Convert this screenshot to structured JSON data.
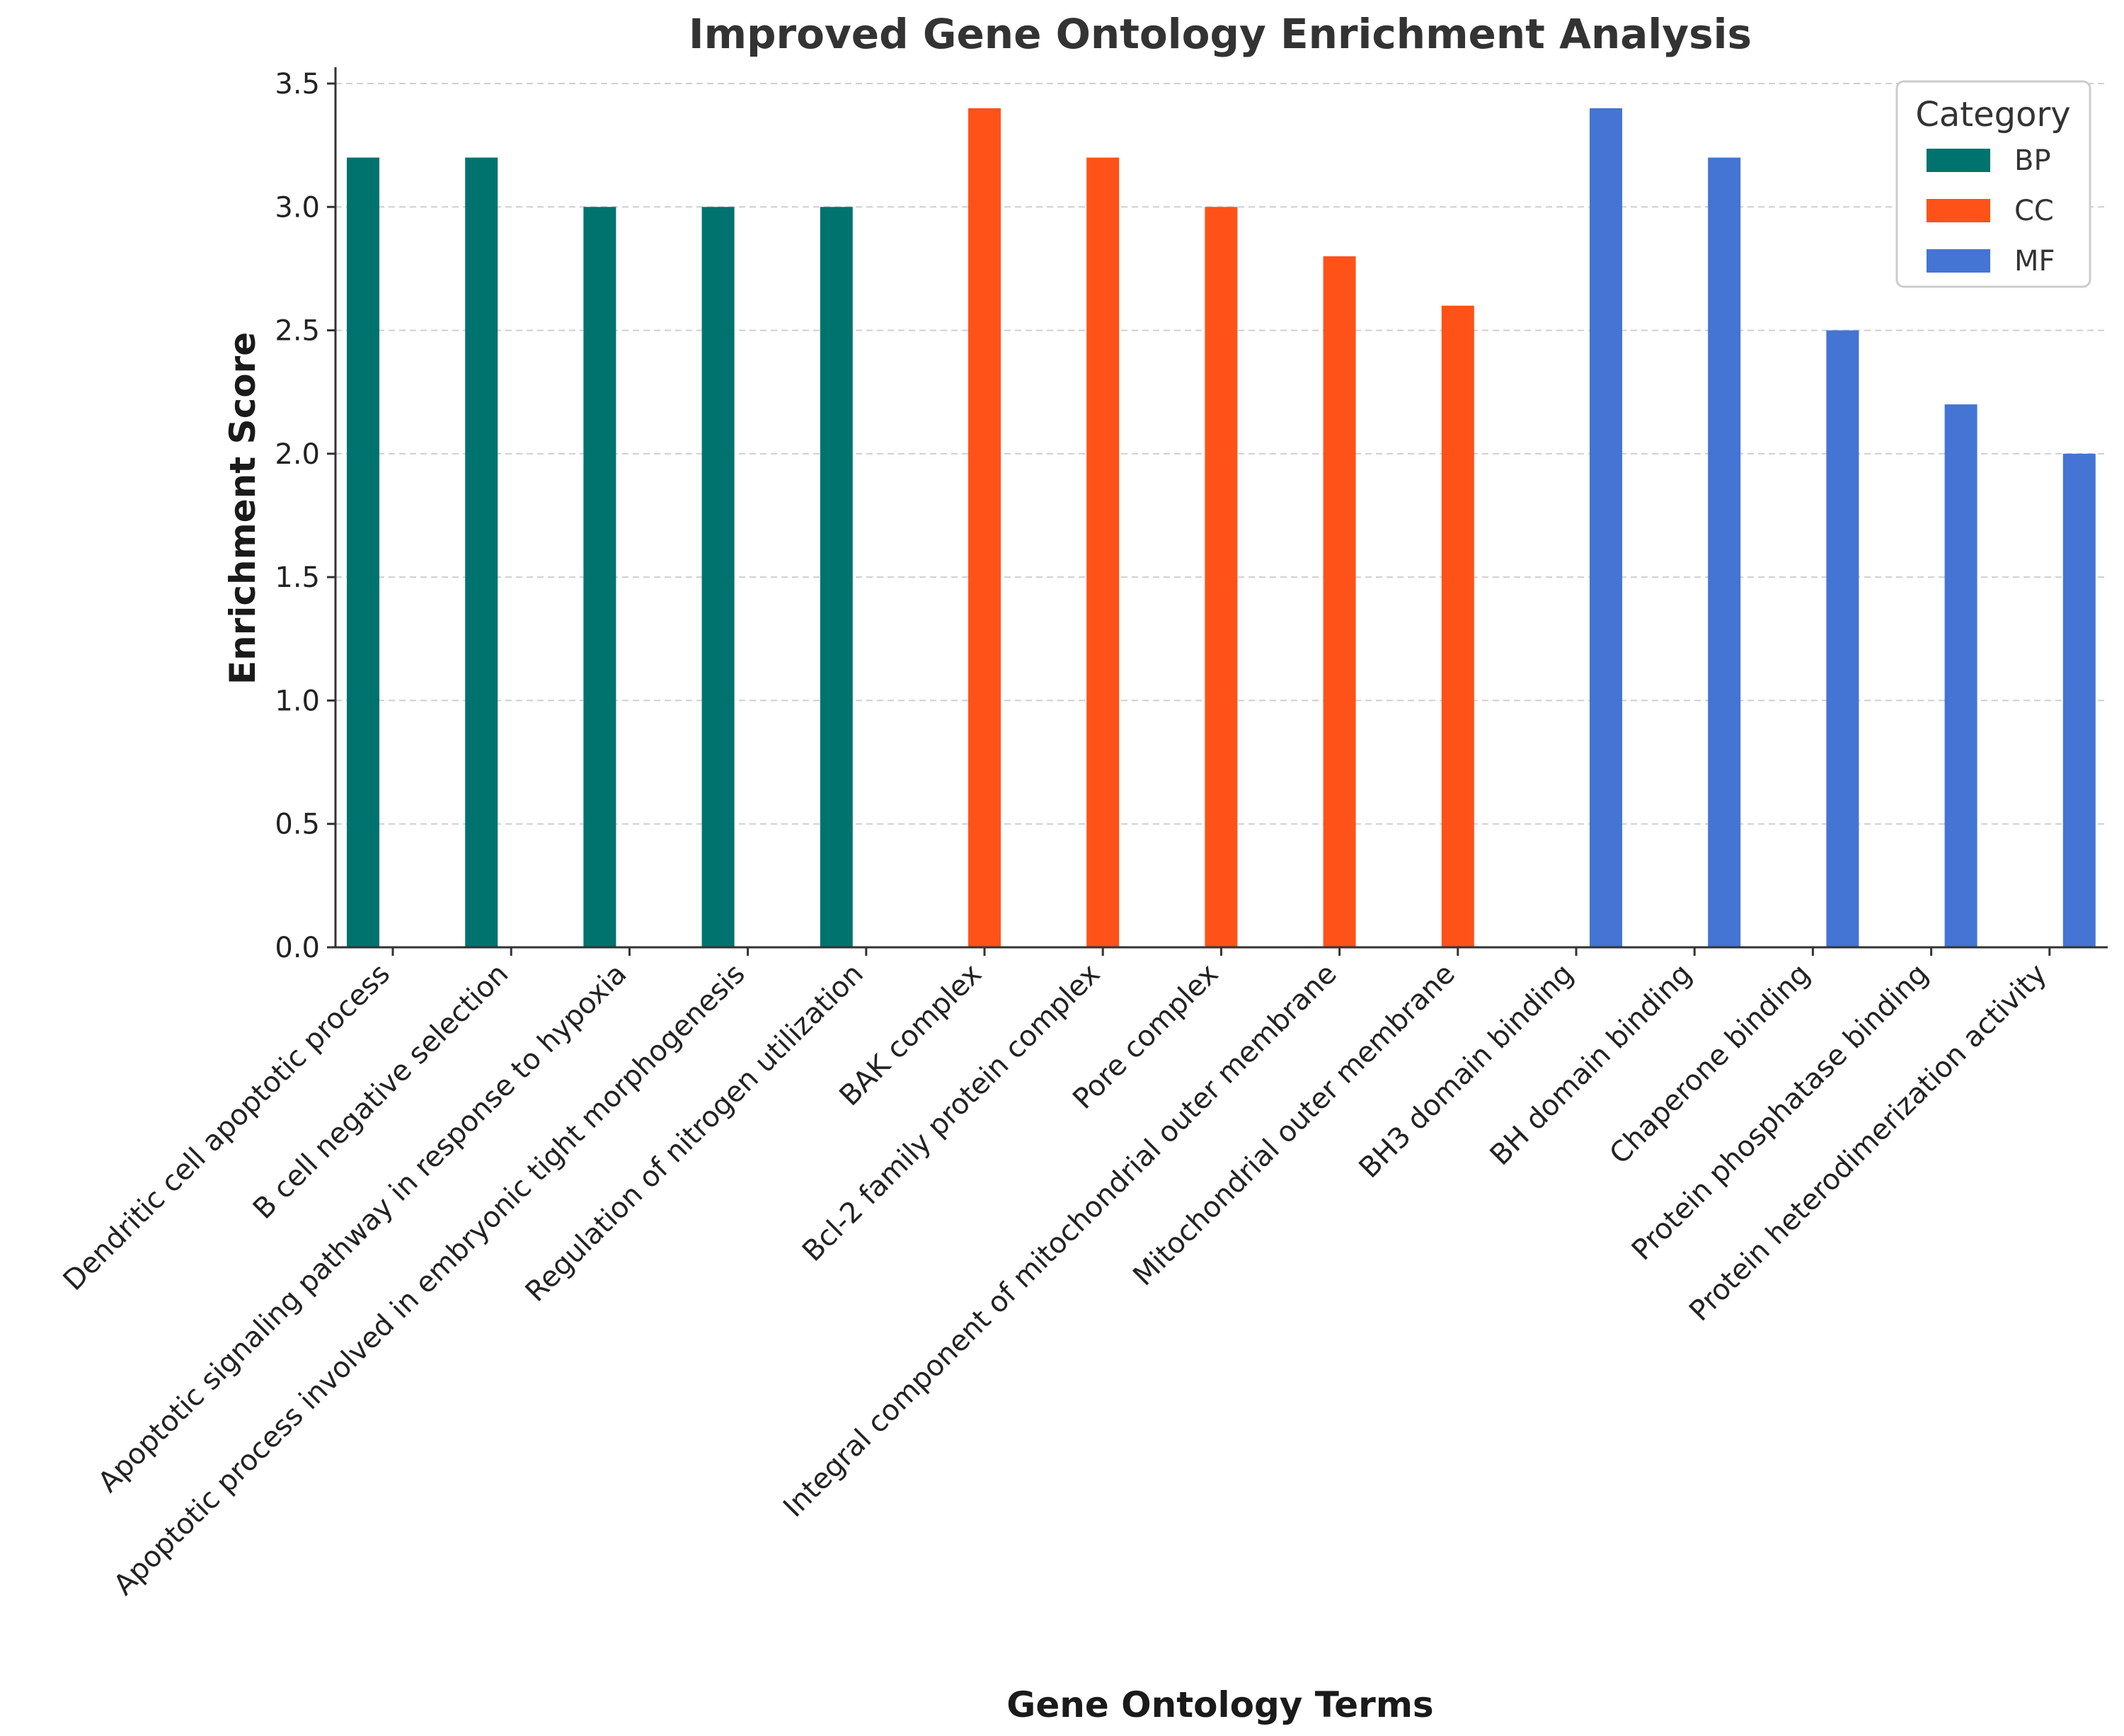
{
  "chart_data": {
    "type": "bar",
    "title": "Improved Gene Ontology Enrichment Analysis",
    "xlabel": "Gene Ontology Terms",
    "ylabel": "Enrichment Score",
    "ylim": [
      0,
      3.5
    ],
    "yticks": [
      "0.0",
      "0.5",
      "1.0",
      "1.5",
      "2.0",
      "2.5",
      "3.0",
      "3.5"
    ],
    "grid": true,
    "legend": {
      "title": "Category",
      "placement": "top-right"
    },
    "categories": [
      "Dendritic cell apoptotic process",
      "B cell negative selection",
      "Apoptotic signaling pathway in response to hypoxia",
      "Apoptotic process involved in embryonic tight morphogenesis",
      "Regulation of nitrogen utilization",
      "BAK complex",
      "Bcl-2 family protein complex",
      "Pore complex",
      "Integral component of mitochondrial outer membrane",
      "Mitochondrial outer membrane",
      "BH3 domain binding",
      "BH domain binding",
      "Chaperone binding",
      "Protein phosphatase binding",
      "Protein heterodimerization activity"
    ],
    "series": [
      {
        "name": "BP",
        "color": "#00736e",
        "values": [
          3.2,
          3.2,
          3.0,
          3.0,
          3.0,
          null,
          null,
          null,
          null,
          null,
          null,
          null,
          null,
          null,
          null
        ]
      },
      {
        "name": "CC",
        "color": "#ff5219",
        "values": [
          null,
          null,
          null,
          null,
          null,
          3.4,
          3.2,
          3.0,
          2.8,
          2.6,
          null,
          null,
          null,
          null,
          null
        ]
      },
      {
        "name": "MF",
        "color": "#4474d4",
        "values": [
          null,
          null,
          null,
          null,
          null,
          null,
          null,
          null,
          null,
          null,
          3.4,
          3.2,
          2.5,
          2.2,
          2.0
        ]
      }
    ]
  }
}
